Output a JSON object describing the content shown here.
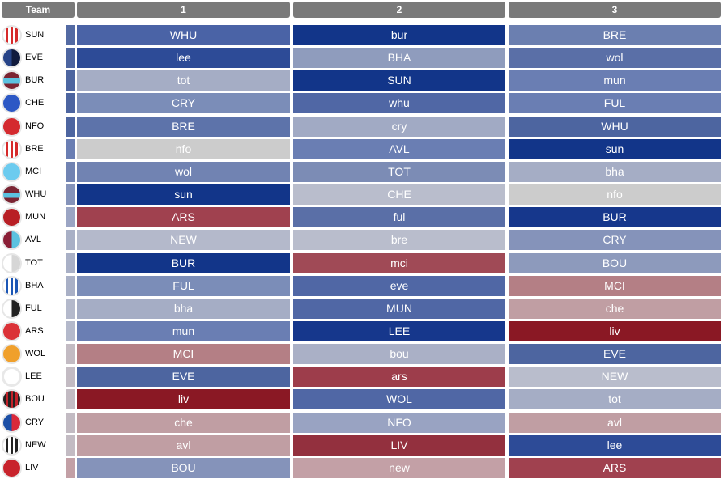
{
  "header": {
    "team_label": "Team",
    "columns": [
      "1",
      "2",
      "3"
    ],
    "color": "#7a7a7a"
  },
  "rows": [
    {
      "team": "SUN",
      "badge": {
        "type": "stripes",
        "colors": [
          "#d62a2a",
          "#ffffff"
        ]
      },
      "strip": "#536aa3",
      "fixtures": [
        {
          "opp": "WHU",
          "color": "#4a63a6"
        },
        {
          "opp": "bur",
          "color": "#123589"
        },
        {
          "opp": "BRE",
          "color": "#6b7fb0"
        }
      ]
    },
    {
      "team": "EVE",
      "badge": {
        "type": "split",
        "colors": [
          "#274488",
          "#111b3d"
        ]
      },
      "strip": "#4d65a0",
      "fixtures": [
        {
          "opp": "lee",
          "color": "#2d4b97"
        },
        {
          "opp": "BHA",
          "color": "#8f9cbd"
        },
        {
          "opp": "wol",
          "color": "#5a6fa7"
        }
      ]
    },
    {
      "team": "BUR",
      "badge": {
        "type": "band",
        "colors": [
          "#7b2533",
          "#5bc2e0"
        ]
      },
      "strip": "#4d65a0",
      "fixtures": [
        {
          "opp": "tot",
          "color": "#a5adc5"
        },
        {
          "opp": "SUN",
          "color": "#123589"
        },
        {
          "opp": "mun",
          "color": "#6a7eb3"
        }
      ]
    },
    {
      "team": "CHE",
      "badge": {
        "type": "solid",
        "colors": [
          "#2c58c5"
        ]
      },
      "strip": "#4d65a0",
      "fixtures": [
        {
          "opp": "CRY",
          "color": "#7b8db8"
        },
        {
          "opp": "whu",
          "color": "#5067a5"
        },
        {
          "opp": "FUL",
          "color": "#6a7eb3"
        }
      ]
    },
    {
      "team": "NFO",
      "badge": {
        "type": "solid",
        "colors": [
          "#d42a2f"
        ]
      },
      "strip": "#4d65a0",
      "fixtures": [
        {
          "opp": "BRE",
          "color": "#5d73aa"
        },
        {
          "opp": "cry",
          "color": "#a1aac4"
        },
        {
          "opp": "WHU",
          "color": "#4d65a0"
        }
      ]
    },
    {
      "team": "BRE",
      "badge": {
        "type": "stripes",
        "colors": [
          "#d62a2a",
          "#ffffff"
        ]
      },
      "strip": "#6a7eb3",
      "fixtures": [
        {
          "opp": "nfo",
          "color": "#cccccc"
        },
        {
          "opp": "AVL",
          "color": "#6a7eb3"
        },
        {
          "opp": "sun",
          "color": "#123589"
        }
      ]
    },
    {
      "team": "MCI",
      "badge": {
        "type": "solid",
        "colors": [
          "#6ccbef"
        ]
      },
      "strip": "#7183b2",
      "fixtures": [
        {
          "opp": "wol",
          "color": "#7183b2"
        },
        {
          "opp": "TOT",
          "color": "#7c8cb5"
        },
        {
          "opp": "bha",
          "color": "#a5adc5"
        }
      ]
    },
    {
      "team": "WHU",
      "badge": {
        "type": "band",
        "colors": [
          "#7b2533",
          "#5bc2e0"
        ]
      },
      "strip": "#8593ba",
      "fixtures": [
        {
          "opp": "sun",
          "color": "#123589"
        },
        {
          "opp": "CHE",
          "color": "#b9bdcc"
        },
        {
          "opp": "nfo",
          "color": "#cccccc"
        }
      ]
    },
    {
      "team": "MUN",
      "badge": {
        "type": "solid",
        "colors": [
          "#b81f25"
        ]
      },
      "strip": "#9ba5c4",
      "fixtures": [
        {
          "opp": "ARS",
          "color": "#a0414f"
        },
        {
          "opp": "ful",
          "color": "#5a6fa7"
        },
        {
          "opp": "BUR",
          "color": "#16378c"
        }
      ]
    },
    {
      "team": "AVL",
      "badge": {
        "type": "split",
        "colors": [
          "#8a1e36",
          "#5bc2e0"
        ]
      },
      "strip": "#a9b0c6",
      "fixtures": [
        {
          "opp": "NEW",
          "color": "#b4b9cb"
        },
        {
          "opp": "bre",
          "color": "#b9bdcc"
        },
        {
          "opp": "CRY",
          "color": "#8593ba"
        }
      ]
    },
    {
      "team": "TOT",
      "badge": {
        "type": "split",
        "colors": [
          "#ffffff",
          "#d6d6d6"
        ]
      },
      "strip": "#a9b0c6",
      "fixtures": [
        {
          "opp": "BUR",
          "color": "#123589"
        },
        {
          "opp": "mci",
          "color": "#a04a56"
        },
        {
          "opp": "BOU",
          "color": "#8d9abc"
        }
      ]
    },
    {
      "team": "BHA",
      "badge": {
        "type": "stripes",
        "colors": [
          "#1b56b5",
          "#ffffff"
        ]
      },
      "strip": "#a9b0c6",
      "fixtures": [
        {
          "opp": "FUL",
          "color": "#7b8db8"
        },
        {
          "opp": "eve",
          "color": "#5067a5"
        },
        {
          "opp": "MCI",
          "color": "#b47f85"
        }
      ]
    },
    {
      "team": "FUL",
      "badge": {
        "type": "split",
        "colors": [
          "#ffffff",
          "#222222"
        ]
      },
      "strip": "#b4b9cb",
      "fixtures": [
        {
          "opp": "bha",
          "color": "#a5adc5"
        },
        {
          "opp": "MUN",
          "color": "#5067a5"
        },
        {
          "opp": "che",
          "color": "#c09ea3"
        }
      ]
    },
    {
      "team": "ARS",
      "badge": {
        "type": "solid",
        "colors": [
          "#db3238"
        ]
      },
      "strip": "#b4b9cb",
      "fixtures": [
        {
          "opp": "mun",
          "color": "#6a7eb3"
        },
        {
          "opp": "LEE",
          "color": "#16378c"
        },
        {
          "opp": "liv",
          "color": "#8a1824"
        }
      ]
    },
    {
      "team": "WOL",
      "badge": {
        "type": "solid",
        "colors": [
          "#f0a02c"
        ]
      },
      "strip": "#c3bbc3",
      "fixtures": [
        {
          "opp": "MCI",
          "color": "#b47f85"
        },
        {
          "opp": "bou",
          "color": "#aab0c6"
        },
        {
          "opp": "EVE",
          "color": "#4d65a0"
        }
      ]
    },
    {
      "team": "LEE",
      "badge": {
        "type": "ring",
        "colors": [
          "#ffffff",
          "#e8e8e8"
        ]
      },
      "strip": "#c3bbc3",
      "fixtures": [
        {
          "opp": "EVE",
          "color": "#4d65a0"
        },
        {
          "opp": "ars",
          "color": "#9d3d4b"
        },
        {
          "opp": "NEW",
          "color": "#b9bdcc"
        }
      ]
    },
    {
      "team": "BOU",
      "badge": {
        "type": "stripes",
        "colors": [
          "#c22129",
          "#222222"
        ]
      },
      "strip": "#c3bbc3",
      "fixtures": [
        {
          "opp": "liv",
          "color": "#8a1824"
        },
        {
          "opp": "WOL",
          "color": "#5067a5"
        },
        {
          "opp": "tot",
          "color": "#a5adc5"
        }
      ]
    },
    {
      "team": "CRY",
      "badge": {
        "type": "split",
        "colors": [
          "#1b4fa6",
          "#d9293a"
        ]
      },
      "strip": "#c3bbc3",
      "fixtures": [
        {
          "opp": "che",
          "color": "#c09ea3"
        },
        {
          "opp": "NFO",
          "color": "#99a3c2"
        },
        {
          "opp": "avl",
          "color": "#c09ea3"
        }
      ]
    },
    {
      "team": "NEW",
      "badge": {
        "type": "stripes",
        "colors": [
          "#222222",
          "#ffffff"
        ]
      },
      "strip": "#c3bbc3",
      "fixtures": [
        {
          "opp": "avl",
          "color": "#c09ea3"
        },
        {
          "opp": "LIV",
          "color": "#93303e"
        },
        {
          "opp": "lee",
          "color": "#2d4b97"
        }
      ]
    },
    {
      "team": "LIV",
      "badge": {
        "type": "solid",
        "colors": [
          "#c8232c"
        ]
      },
      "strip": "#c3a0a6",
      "fixtures": [
        {
          "opp": "BOU",
          "color": "#8593ba"
        },
        {
          "opp": "new",
          "color": "#c3a0a6"
        },
        {
          "opp": "ARS",
          "color": "#a0414f"
        }
      ]
    }
  ]
}
